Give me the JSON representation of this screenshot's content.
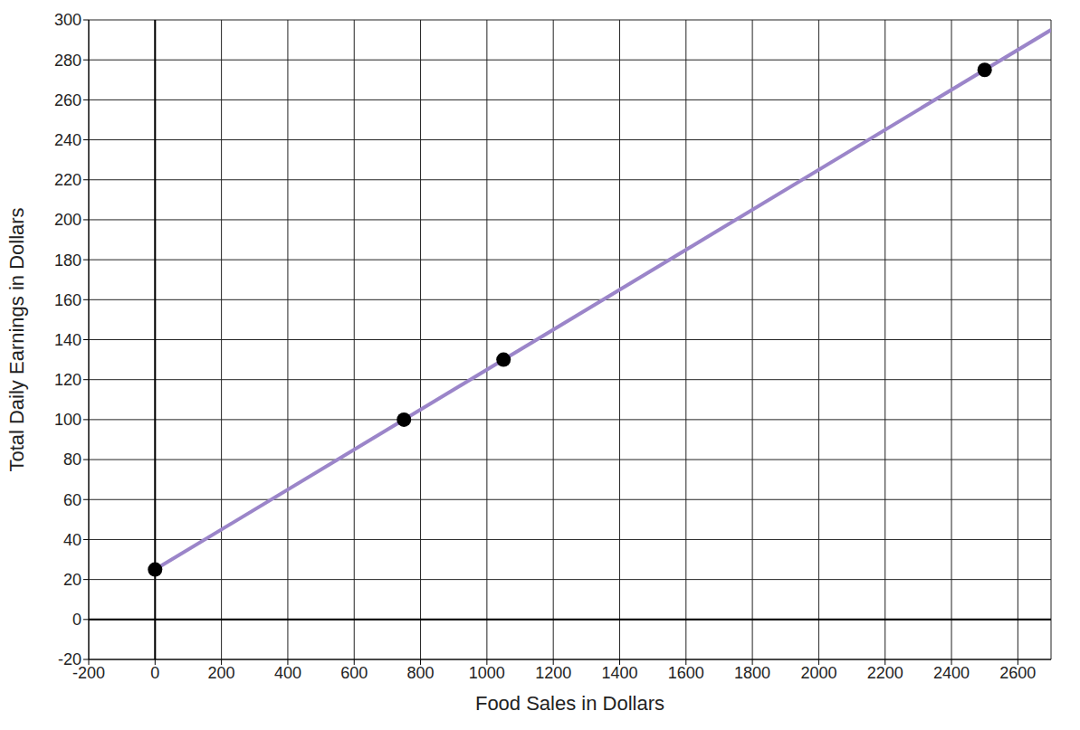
{
  "chart_data": {
    "type": "scatter",
    "x_label": "Food Sales in Dollars",
    "y_label": "Total Daily Earnings in Dollars",
    "x": [
      0,
      750,
      1050,
      2500
    ],
    "values": [
      25,
      100,
      130,
      275
    ],
    "color": "#000000",
    "marker": "circle",
    "trend_line": {
      "x": [
        0,
        2700
      ],
      "values": [
        25,
        295
      ],
      "color": "#9b85c9",
      "line_style": "solid"
    },
    "xlim": [
      -200,
      2700
    ],
    "ylim": [
      -20,
      300
    ],
    "xticks": [
      -200,
      0,
      200,
      400,
      600,
      800,
      1000,
      1200,
      1400,
      1600,
      1800,
      2000,
      2200,
      2400,
      2600
    ],
    "yticks": [
      -20,
      0,
      20,
      40,
      60,
      80,
      100,
      120,
      140,
      160,
      180,
      200,
      220,
      240,
      260,
      280,
      300
    ],
    "grid": true
  }
}
